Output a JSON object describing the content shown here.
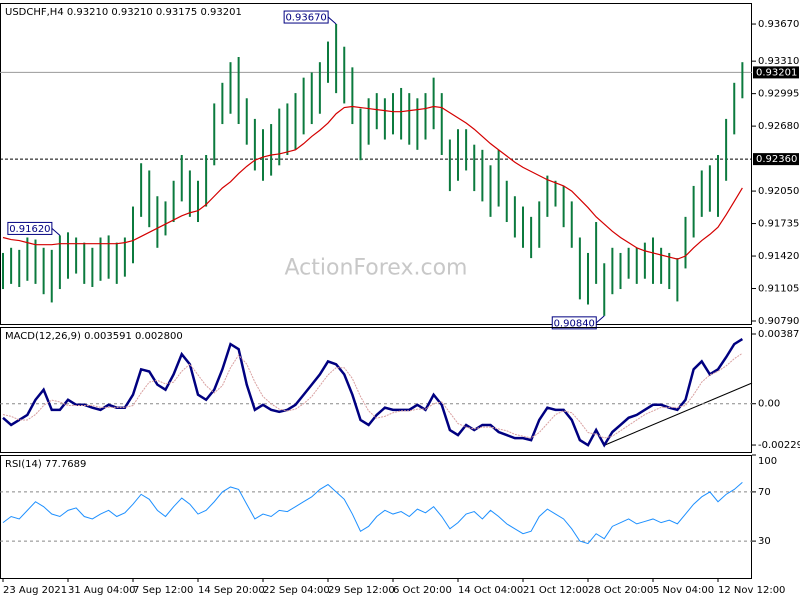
{
  "chart_data": [
    {
      "type": "hl_bar",
      "title": "USDCHF,H4  0.93210 0.93210 0.93175 0.93201",
      "watermark": "ActionForex.com",
      "categories": [
        "23 Aug 2021",
        null,
        null,
        null,
        null,
        null,
        null,
        null,
        "31 Aug 04:00",
        null,
        null,
        null,
        null,
        null,
        null,
        null,
        "7 Sep 12:00",
        null,
        null,
        null,
        null,
        null,
        null,
        null,
        "14 Sep 20:00",
        null,
        null,
        null,
        null,
        null,
        null,
        null,
        "22 Sep 04:00",
        null,
        null,
        null,
        null,
        null,
        null,
        null,
        "29 Sep 12:00",
        null,
        null,
        null,
        null,
        null,
        null,
        null,
        "6 Oct 20:00",
        null,
        null,
        null,
        null,
        null,
        null,
        null,
        "14 Oct 04:00",
        null,
        null,
        null,
        null,
        null,
        null,
        null,
        "21 Oct 12:00",
        null,
        null,
        null,
        null,
        null,
        null,
        null,
        "28 Oct 20:00",
        null,
        null,
        null,
        null,
        null,
        null,
        null,
        "5 Nov 04:00",
        null,
        null,
        null,
        null,
        null,
        null,
        null,
        "12 Nov 12:00",
        null,
        null,
        null
      ],
      "highs": [
        0.9145,
        0.915,
        0.9148,
        0.916,
        0.9158,
        0.915,
        0.9148,
        0.9162,
        0.9165,
        0.916,
        0.9155,
        0.915,
        0.916,
        0.9162,
        0.9155,
        0.916,
        0.919,
        0.9232,
        0.9225,
        0.92,
        0.9195,
        0.9215,
        0.924,
        0.9225,
        0.9215,
        0.924,
        0.929,
        0.931,
        0.933,
        0.9335,
        0.9295,
        0.9275,
        0.9265,
        0.927,
        0.9285,
        0.929,
        0.93,
        0.9315,
        0.932,
        0.933,
        0.935,
        0.9367,
        0.9345,
        0.9325,
        0.9285,
        0.9295,
        0.93,
        0.9295,
        0.93,
        0.9305,
        0.93,
        0.9295,
        0.93,
        0.9315,
        0.93,
        0.9255,
        0.9265,
        0.9265,
        0.925,
        0.9245,
        0.923,
        0.9245,
        0.9215,
        0.92,
        0.919,
        0.918,
        0.9195,
        0.922,
        0.9215,
        0.921,
        0.9195,
        0.916,
        0.9145,
        0.9175,
        0.9135,
        0.915,
        0.9145,
        0.915,
        0.915,
        0.9155,
        0.916,
        0.915,
        0.9145,
        0.914,
        0.918,
        0.921,
        0.9225,
        0.923,
        0.924,
        0.9275,
        0.931,
        0.933
      ],
      "lows": [
        0.911,
        0.9115,
        0.9112,
        0.9118,
        0.9115,
        0.9105,
        0.9097,
        0.911,
        0.912,
        0.9125,
        0.9115,
        0.9112,
        0.9118,
        0.912,
        0.9115,
        0.9122,
        0.9135,
        0.918,
        0.917,
        0.915,
        0.9162,
        0.9175,
        0.9195,
        0.918,
        0.9175,
        0.919,
        0.923,
        0.927,
        0.928,
        0.927,
        0.925,
        0.9225,
        0.9215,
        0.922,
        0.923,
        0.924,
        0.9245,
        0.926,
        0.927,
        0.928,
        0.931,
        0.93,
        0.929,
        0.927,
        0.9235,
        0.925,
        0.9265,
        0.9255,
        0.926,
        0.9255,
        0.925,
        0.9245,
        0.9255,
        0.9265,
        0.924,
        0.9205,
        0.9215,
        0.9225,
        0.9205,
        0.9195,
        0.918,
        0.919,
        0.9175,
        0.916,
        0.915,
        0.914,
        0.915,
        0.918,
        0.919,
        0.917,
        0.915,
        0.91,
        0.9095,
        0.9115,
        0.9084,
        0.9105,
        0.911,
        0.912,
        0.9115,
        0.912,
        0.9115,
        0.9115,
        0.911,
        0.9098,
        0.913,
        0.916,
        0.918,
        0.9185,
        0.918,
        0.9215,
        0.926,
        0.9295
      ],
      "color": "#0b7a3e",
      "lines": [
        {
          "color": "#d40000",
          "values": [
            0.916,
            0.9158,
            0.9157,
            0.9155,
            0.9153,
            0.9153,
            0.9153,
            0.9154,
            0.9154,
            0.9154,
            0.9154,
            0.9154,
            0.9154,
            0.9154,
            0.9154,
            0.9155,
            0.9157,
            0.9161,
            0.9165,
            0.9169,
            0.9173,
            0.9177,
            0.9181,
            0.9184,
            0.9186,
            0.9192,
            0.92,
            0.9208,
            0.9214,
            0.9222,
            0.9229,
            0.9235,
            0.9238,
            0.924,
            0.9241,
            0.9243,
            0.9245,
            0.9251,
            0.9258,
            0.9264,
            0.9271,
            0.928,
            0.9286,
            0.9287,
            0.9286,
            0.9285,
            0.9284,
            0.9283,
            0.9282,
            0.9282,
            0.9283,
            0.9284,
            0.9285,
            0.9287,
            0.9286,
            0.9281,
            0.9276,
            0.9271,
            0.9265,
            0.9258,
            0.9251,
            0.9245,
            0.9239,
            0.9233,
            0.9228,
            0.9224,
            0.922,
            0.9216,
            0.9213,
            0.921,
            0.9205,
            0.9197,
            0.9189,
            0.918,
            0.9173,
            0.9166,
            0.916,
            0.9155,
            0.915,
            0.9147,
            0.9145,
            0.9143,
            0.9141,
            0.9139,
            0.9142,
            0.915,
            0.9157,
            0.9163,
            0.917,
            0.9182,
            0.9195,
            0.9208
          ]
        }
      ],
      "hlines": [
        {
          "value": 0.93201,
          "label": "0.93201",
          "style": "solid"
        },
        {
          "value": 0.9236,
          "label": "0.92360",
          "style": "dashed"
        }
      ],
      "annotations": [
        {
          "value": 0.9367,
          "label": "0.93670"
        },
        {
          "value": 0.9162,
          "label": "0.91620"
        },
        {
          "value": 0.9084,
          "label": "0.90840"
        }
      ],
      "ylim": [
        0.90761,
        0.93874
      ],
      "yticks": [
        {
          "value": 0.9367,
          "label": "0.93670"
        },
        {
          "value": 0.9331,
          "label": "0.93310"
        },
        {
          "value": 0.92995,
          "label": "0.92995"
        },
        {
          "value": 0.9268,
          "label": "0.92680"
        },
        {
          "value": 0.9205,
          "label": "0.92050"
        },
        {
          "value": 0.91735,
          "label": "0.91735"
        },
        {
          "value": 0.9142,
          "label": "0.91420"
        },
        {
          "value": 0.91105,
          "label": "0.91105"
        },
        {
          "value": 0.9079,
          "label": "0.90790"
        }
      ]
    },
    {
      "type": "line",
      "title": "MACD(12,26,9) 0.003591 0.002800",
      "zero_line": true,
      "series": [
        {
          "color": "#000080",
          "style": "thick",
          "values": [
            -0.00078,
            -0.00118,
            -0.0009,
            -0.00062,
            0.00022,
            0.00078,
            -0.00034,
            -0.00034,
            0.00022,
            -6e-05,
            -6e-05,
            -0.00022,
            -0.00034,
            -6e-05,
            -0.00022,
            -0.00022,
            0.0005,
            0.00191,
            0.00179,
            0.00106,
            0.00078,
            0.00163,
            0.00275,
            0.00219,
            0.0005,
            0.00022,
            0.00078,
            0.00191,
            0.00331,
            0.00303,
            0.00106,
            -0.00034,
            -6e-05,
            -0.00034,
            -0.00045,
            -0.00034,
            -6e-05,
            0.0005,
            0.00106,
            0.00163,
            0.00235,
            0.00219,
            0.00163,
            0.0005,
            -0.0009,
            -0.00118,
            -0.00062,
            -0.00022,
            -0.00034,
            -0.00034,
            -0.00034,
            -6e-05,
            -0.00034,
            0.0005,
            -6e-05,
            -0.00146,
            -0.00174,
            -0.00118,
            -0.00146,
            -0.00118,
            -0.00118,
            -0.00157,
            -0.00174,
            -0.00191,
            -0.00191,
            -0.00202,
            -0.0009,
            -0.00022,
            -0.00034,
            -0.00034,
            -0.0009,
            -0.00202,
            -0.0023,
            -0.00146,
            -0.0023,
            -0.00157,
            -0.00118,
            -0.00078,
            -0.00062,
            -0.00034,
            -6e-05,
            -6e-05,
            -0.00022,
            -0.00034,
            0.00022,
            0.00191,
            0.00235,
            0.00163,
            0.00191,
            0.00258,
            0.00331,
            0.003591
          ]
        },
        {
          "color": "#d9a0a0",
          "style": "dotted",
          "values": [
            -0.0006,
            -0.0007,
            -0.0009,
            -0.0009,
            -0.0006,
            -0.0001,
            0.0002,
            0.0001,
            -0.0001,
            -0.0001,
            -0.0001,
            -0.0001,
            -0.0002,
            -0.0002,
            -0.0002,
            -0.0002,
            -0.0001,
            0.0006,
            0.0012,
            0.0013,
            0.0011,
            0.0012,
            0.0018,
            0.0022,
            0.0016,
            0.001,
            0.0006,
            0.001,
            0.002,
            0.0027,
            0.0022,
            0.0012,
            0.0004,
            0.0,
            -0.0003,
            -0.0004,
            -0.0003,
            0.0,
            0.0004,
            0.001,
            0.0016,
            0.002,
            0.002,
            0.0014,
            0.0004,
            -0.0004,
            -0.0008,
            -0.0007,
            -0.0005,
            -0.0004,
            -0.0004,
            -0.0003,
            -0.0003,
            0.0,
            0.0001,
            -0.0005,
            -0.0011,
            -0.0013,
            -0.0014,
            -0.0013,
            -0.0013,
            -0.0014,
            -0.0015,
            -0.0017,
            -0.0018,
            -0.0019,
            -0.0016,
            -0.0011,
            -0.0006,
            -0.0004,
            -0.0005,
            -0.001,
            -0.0016,
            -0.0017,
            -0.0019,
            -0.0018,
            -0.0015,
            -0.0012,
            -0.0009,
            -0.0006,
            -0.0004,
            -0.0002,
            -0.0002,
            -0.0002,
            -0.0001,
            0.0005,
            0.0012,
            0.0016,
            0.0018,
            0.0021,
            0.0025,
            0.0028
          ]
        }
      ],
      "ylim": [
        -0.00268,
        0.00426
      ],
      "yticks": [
        0.003871,
        {
          "value": 0,
          "label": "0.00"
        },
        -0.002293
      ]
    },
    {
      "type": "line",
      "title": "RSI(14) 77.7689",
      "grid": true,
      "series": [
        {
          "color": "#1e90ff",
          "style": "solid",
          "values": [
            45,
            50,
            48,
            55,
            62,
            58,
            52,
            50,
            55,
            57,
            50,
            48,
            52,
            55,
            50,
            53,
            60,
            68,
            64,
            55,
            50,
            58,
            65,
            60,
            52,
            55,
            62,
            70,
            74,
            72,
            60,
            48,
            52,
            50,
            55,
            54,
            58,
            62,
            66,
            72,
            76,
            70,
            64,
            52,
            38,
            42,
            50,
            55,
            52,
            54,
            50,
            56,
            53,
            58,
            50,
            40,
            45,
            52,
            54,
            48,
            55,
            50,
            44,
            40,
            36,
            38,
            50,
            56,
            52,
            48,
            40,
            30,
            28,
            36,
            32,
            42,
            45,
            48,
            44,
            46,
            48,
            45,
            47,
            44,
            52,
            60,
            66,
            70,
            62,
            68,
            72,
            77.7689
          ]
        }
      ],
      "ylim": [
        0,
        100
      ],
      "yticks": [
        100,
        70,
        30
      ]
    }
  ]
}
